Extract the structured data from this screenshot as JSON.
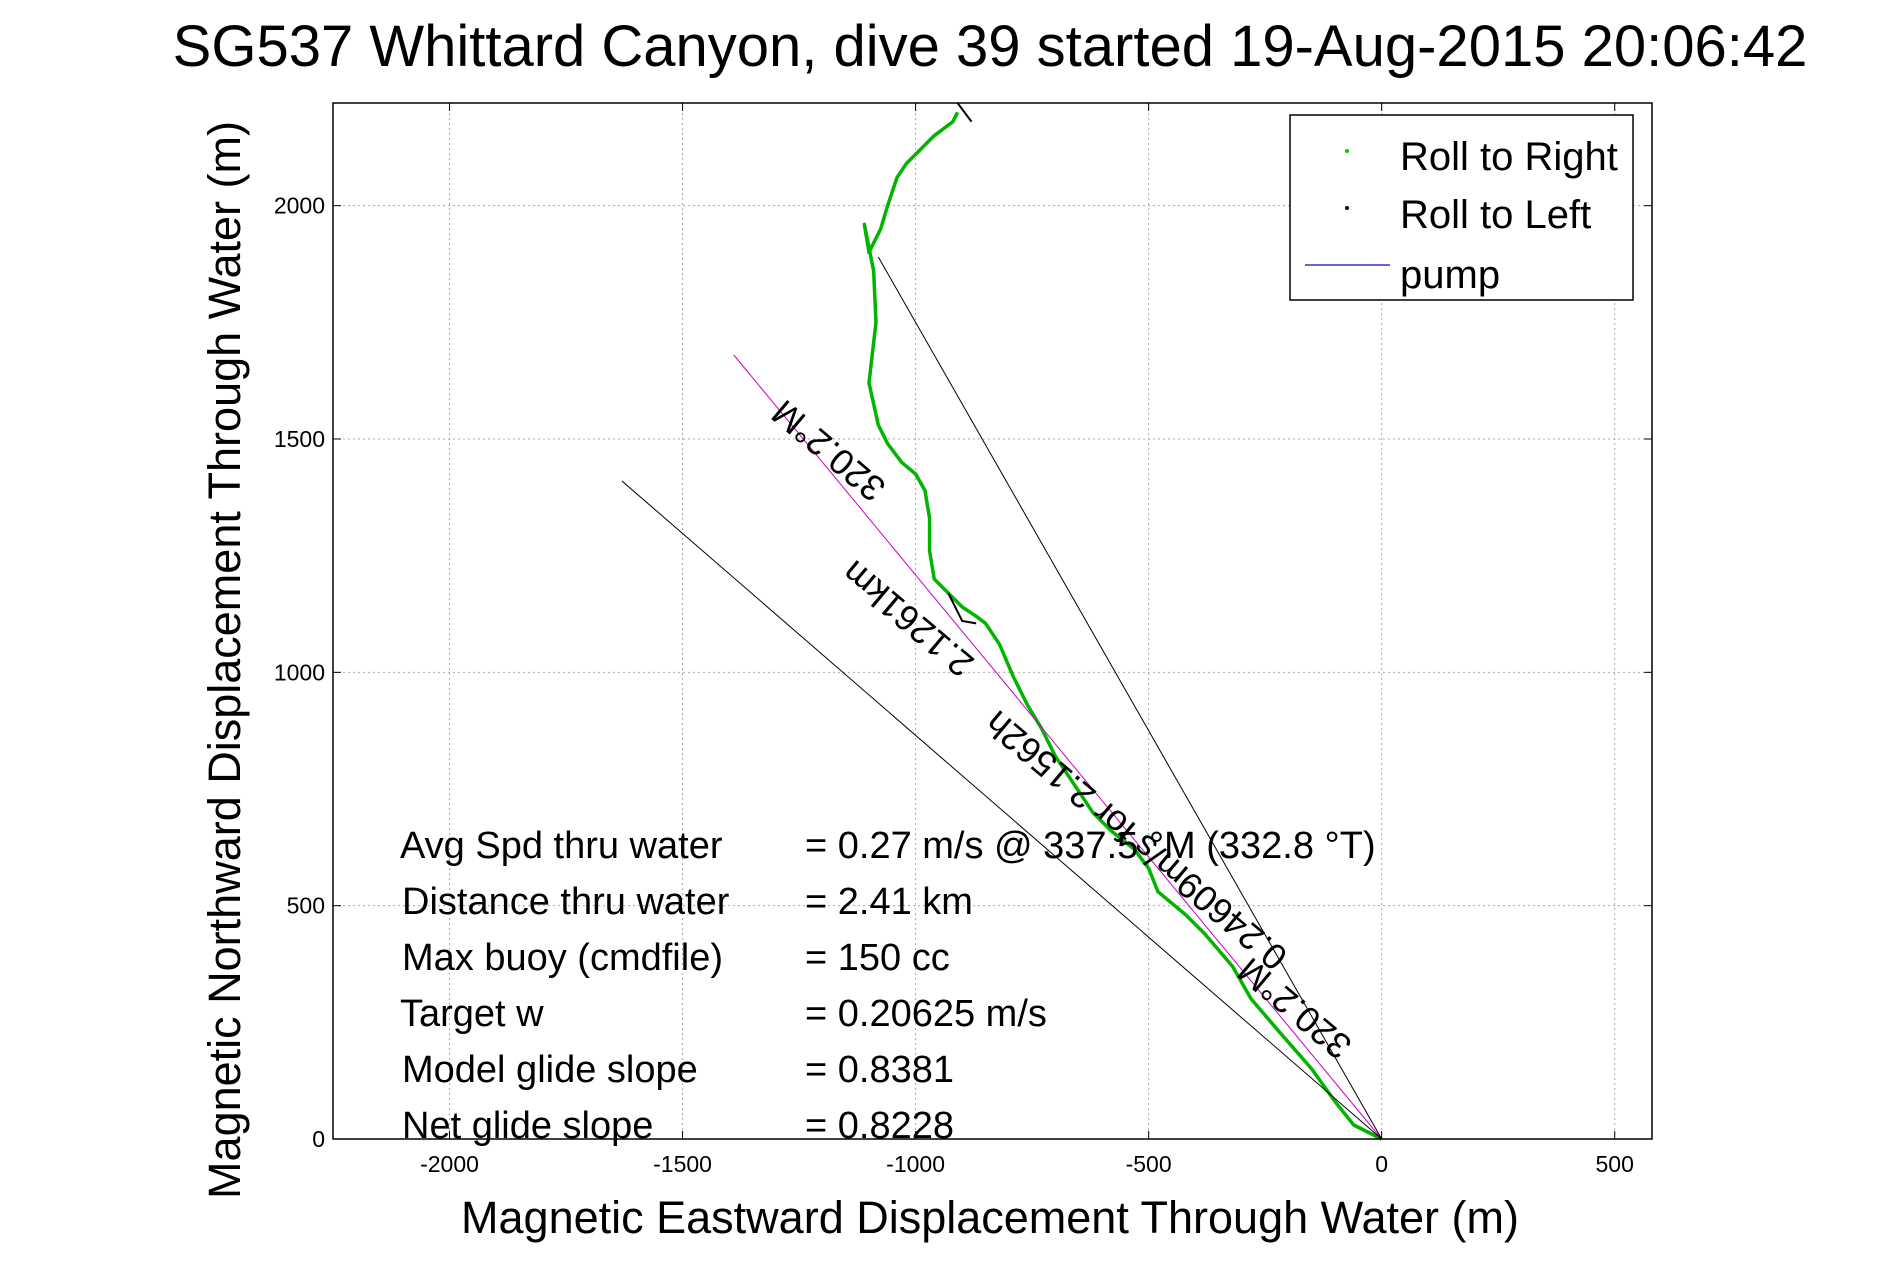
{
  "chart_data": {
    "type": "line",
    "title": "SG537 Whittard Canyon, dive 39 started 19-Aug-2015 20:06:42",
    "xlabel": "Magnetic Eastward Displacement Through Water (m)",
    "ylabel": "Magnetic Northward Displacement Through Water (m)",
    "xlim": [
      -2250,
      580
    ],
    "ylim": [
      0,
      2220
    ],
    "xticks": [
      -2000,
      -1500,
      -1000,
      -500,
      0,
      500
    ],
    "yticks": [
      0,
      500,
      1000,
      1500,
      2000
    ],
    "grid": true,
    "legend_position": "top-right",
    "legend": [
      {
        "label": "Roll to Right",
        "color": "#00cc00",
        "marker": "dot"
      },
      {
        "label": "Roll to Left",
        "color": "#000000",
        "marker": "dot"
      },
      {
        "label": "pump",
        "color": "#3333cc",
        "marker": "line"
      }
    ],
    "series": [
      {
        "color": "#00b400",
        "x": [
          0,
          -60,
          -100,
          -150,
          -220,
          -280,
          -320,
          -380,
          -420,
          -480,
          -500,
          -530,
          -580,
          -620,
          -660,
          -700,
          -730,
          -760,
          -790,
          -820,
          -850,
          -870,
          -900,
          -930,
          -960,
          -970,
          -970,
          -980,
          -1000,
          -1030,
          -1060,
          -1080,
          -1100,
          -1085,
          -1090,
          -1110,
          -1100,
          -1075,
          -1060,
          -1040,
          -1020,
          -990,
          -960,
          -920,
          -910
        ],
        "y": [
          0,
          30,
          80,
          150,
          230,
          300,
          370,
          440,
          480,
          530,
          580,
          620,
          660,
          700,
          760,
          820,
          880,
          930,
          990,
          1060,
          1105,
          1120,
          1140,
          1170,
          1200,
          1260,
          1330,
          1390,
          1425,
          1450,
          1490,
          1530,
          1620,
          1750,
          1860,
          1960,
          1900,
          1950,
          2000,
          2060,
          2090,
          2120,
          2150,
          2180,
          2200
        ]
      },
      {
        "color": "#000000",
        "x": [
          -870,
          -900,
          -930,
          -880,
          -910
        ],
        "y": [
          1105,
          1110,
          1170,
          2180,
          2220
        ]
      },
      {
        "color": "#cc00cc",
        "x": [
          0,
          -1390
        ],
        "y": [
          0,
          1680
        ]
      },
      {
        "color": "#000000",
        "x": [
          0,
          -1630
        ],
        "y": [
          0,
          1410
        ]
      },
      {
        "color": "#000000",
        "x": [
          0,
          -1080
        ],
        "y": [
          0,
          1890
        ]
      }
    ],
    "annotations": [
      {
        "text": "320.2°M",
        "x": -1170,
        "y": 1495,
        "angle": 40
      },
      {
        "text": "2.1261km",
        "x": -1000,
        "y": 1135,
        "angle": 40
      },
      {
        "text": "0.24609m/s for 2.1562h",
        "x": -510,
        "y": 660,
        "angle": 40
      },
      {
        "text": "320.2°M",
        "x": -170,
        "y": 300,
        "angle": 40
      }
    ]
  },
  "stats": [
    {
      "label": "Avg Spd thru water",
      "value": "=  0.27 m/s @ 337.5 °M (332.8 °T)"
    },
    {
      "label": "Distance thru water",
      "value": "=  2.41 km"
    },
    {
      "label": "Max buoy (cmdfile)",
      "value": "= 150 cc"
    },
    {
      "label": "Target w",
      "value": "= 0.20625 m/s"
    },
    {
      "label": "Model glide slope",
      "value": "= 0.8381"
    },
    {
      "label": "Net glide slope",
      "value": "= 0.8228"
    }
  ]
}
